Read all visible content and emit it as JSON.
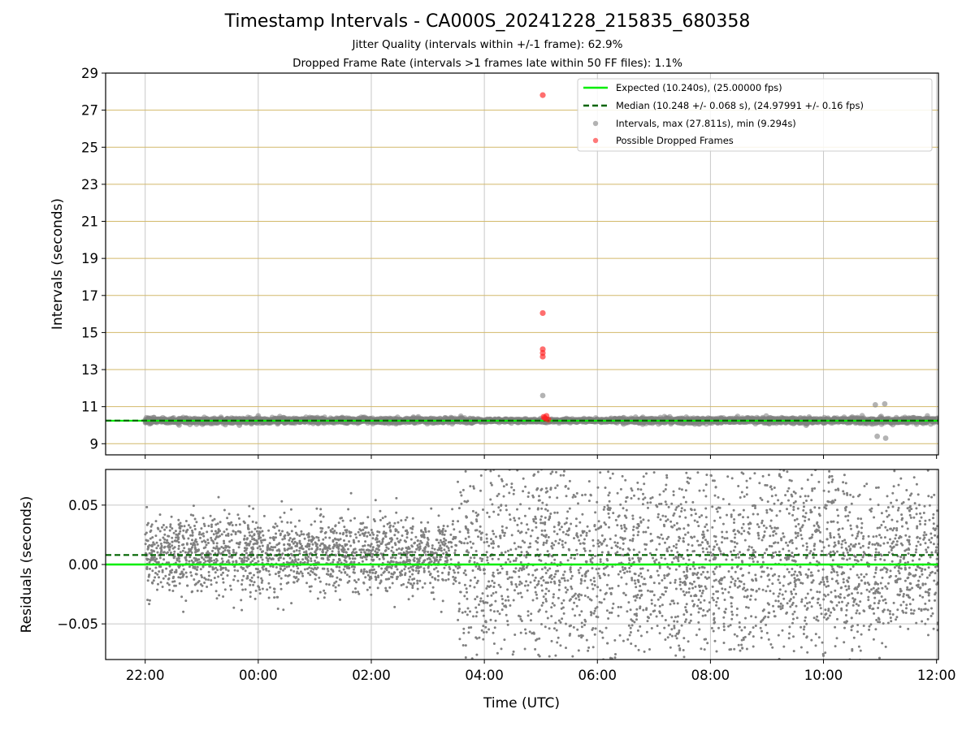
{
  "figure": {
    "title": "Timestamp Intervals - CA000S_20241228_215835_680358",
    "subtitle_1": "Jitter Quality (intervals within +/-1 frame): 62.9%",
    "subtitle_2": "Dropped Frame Rate (intervals >1 frames late within 50 FF files): 1.1%"
  },
  "colors": {
    "expected": "#00ee00",
    "median": "#006400",
    "intervals": "#808080",
    "dropped": "#ff2020",
    "hgrid_top": "#d2b96a",
    "grid": "#c8c8c8"
  },
  "chart_data": [
    {
      "type": "scatter",
      "panel": "intervals",
      "ylabel": "Intervals (seconds)",
      "xlabel": "",
      "x_ticks": [
        "22:00",
        "00:00",
        "02:00",
        "04:00",
        "06:00",
        "08:00",
        "10:00",
        "12:00"
      ],
      "x_range": [
        "2024-12-28 21:18",
        "2024-12-29 12:02"
      ],
      "ylim": [
        8.4,
        29
      ],
      "y_ticks": [
        9,
        11,
        13,
        15,
        17,
        19,
        21,
        23,
        25,
        27,
        29
      ],
      "grid": true,
      "legend_position": "top-right",
      "legend": [
        "Expected (10.240s), (25.00000 fps)",
        "Median (10.248 +/- 0.068 s), (24.97991 +/- 0.16 fps)",
        "Intervals, max (27.811s), min (9.294s)",
        "Possible Dropped Frames"
      ],
      "expected_value": 10.24,
      "median_value": 10.248,
      "series": [
        {
          "name": "Intervals, max (27.811s), min (9.294s)",
          "style": "scatter",
          "x_start": "2024-12-28 22:00",
          "x_end": "2024-12-29 12:02",
          "typical": 10.25,
          "spread": 0.07,
          "highlights": [
            {
              "x": "2024-12-29 05:02",
              "y": 11.6
            },
            {
              "x": "2024-12-29 10:55",
              "y": 11.1
            },
            {
              "x": "2024-12-29 11:05",
              "y": 11.15
            },
            {
              "x": "2024-12-29 10:57",
              "y": 9.4
            },
            {
              "x": "2024-12-29 11:06",
              "y": 9.3
            },
            {
              "x": "2024-12-28 23:40",
              "y": 10.0
            },
            {
              "x": "2024-12-29 00:00",
              "y": 10.5
            }
          ]
        },
        {
          "name": "Possible Dropped Frames",
          "style": "scatter",
          "points": [
            {
              "x": "2024-12-29 05:02",
              "y": 27.811
            },
            {
              "x": "2024-12-29 05:02",
              "y": 16.05
            },
            {
              "x": "2024-12-29 05:02",
              "y": 14.1
            },
            {
              "x": "2024-12-29 05:02",
              "y": 13.9
            },
            {
              "x": "2024-12-29 05:02",
              "y": 13.7
            },
            {
              "x": "2024-12-29 05:03",
              "y": 10.45
            },
            {
              "x": "2024-12-29 05:05",
              "y": 10.35
            },
            {
              "x": "2024-12-29 05:06",
              "y": 10.5
            },
            {
              "x": "2024-12-29 05:08",
              "y": 10.3
            },
            {
              "x": "2024-12-29 05:04",
              "y": 10.4
            }
          ]
        }
      ]
    },
    {
      "type": "scatter",
      "panel": "residuals",
      "xlabel": "Time (UTC)",
      "ylabel": "Residuals (seconds)",
      "x_ticks": [
        "22:00",
        "00:00",
        "02:00",
        "04:00",
        "06:00",
        "08:00",
        "10:00",
        "12:00"
      ],
      "x_range": [
        "2024-12-28 21:18",
        "2024-12-29 12:02"
      ],
      "ylim": [
        -0.08,
        0.08
      ],
      "y_ticks": [
        0.05,
        0.0,
        -0.05
      ],
      "y_tick_labels": [
        "0.05",
        "0.00",
        "−0.05"
      ],
      "grid": true,
      "expected_value": 0.0,
      "median_value": 0.008,
      "series": [
        {
          "name": "Residuals",
          "style": "scatter",
          "x_start": "2024-12-28 22:00",
          "x_end": "2024-12-29 12:02",
          "phases": [
            {
              "from": "2024-12-28 22:00",
              "to": "2024-12-29 03:30",
              "center": 0.008,
              "spread": 0.015
            },
            {
              "from": "2024-12-29 03:30",
              "to": "2024-12-29 10:45",
              "center": 0.0,
              "spread": 0.045
            },
            {
              "from": "2024-12-29 10:45",
              "to": "2024-12-29 12:02",
              "center": 0.0,
              "spread": 0.03
            }
          ]
        }
      ]
    }
  ]
}
